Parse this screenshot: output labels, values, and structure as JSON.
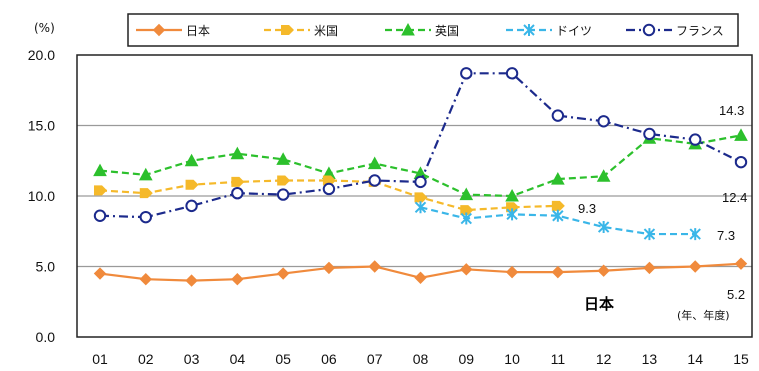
{
  "chart_data": {
    "type": "line",
    "ylabel": "(%)",
    "xunit": "(年、年度)",
    "ylim": [
      0,
      20
    ],
    "yticks": [
      "0.0",
      "5.0",
      "10.0",
      "15.0",
      "20.0"
    ],
    "grid": "horizontal",
    "legend": "top",
    "categories": [
      "01",
      "02",
      "03",
      "04",
      "05",
      "06",
      "07",
      "08",
      "09",
      "10",
      "11",
      "12",
      "13",
      "14",
      "15"
    ],
    "series": [
      {
        "name": "日本",
        "color": "#f08a3c",
        "marker": "diamond",
        "dash": "solid",
        "values": [
          4.5,
          4.1,
          4.0,
          4.1,
          4.5,
          4.9,
          5.0,
          4.2,
          4.8,
          4.6,
          4.6,
          4.7,
          4.9,
          5.0,
          5.2
        ]
      },
      {
        "name": "米国",
        "color": "#f5b92a",
        "marker": "arrow",
        "dash": "dashed",
        "values": [
          10.4,
          10.2,
          10.8,
          11.0,
          11.1,
          11.1,
          11.0,
          9.9,
          9.0,
          9.2,
          9.3,
          null,
          null,
          null,
          null
        ]
      },
      {
        "name": "英国",
        "color": "#2cc02c",
        "marker": "triangle",
        "dash": "dashed",
        "values": [
          11.8,
          11.5,
          12.5,
          13.0,
          12.6,
          11.6,
          12.3,
          11.6,
          10.1,
          10.0,
          11.2,
          11.4,
          14.1,
          13.7,
          14.3
        ]
      },
      {
        "name": "ドイツ",
        "color": "#3ab6e8",
        "marker": "star",
        "dash": "dashed",
        "values": [
          null,
          null,
          null,
          null,
          null,
          null,
          null,
          9.2,
          8.4,
          8.7,
          8.6,
          7.8,
          7.3,
          7.3,
          null
        ]
      },
      {
        "name": "フランス",
        "color": "#1c2a8c",
        "marker": "circle",
        "dash": "dashdot",
        "values": [
          8.6,
          8.5,
          9.3,
          10.2,
          10.1,
          10.5,
          11.1,
          11.0,
          18.7,
          18.7,
          15.7,
          15.3,
          14.4,
          14.0,
          12.4
        ]
      }
    ],
    "annotations": [
      {
        "text": "14.3"
      },
      {
        "text": "12.4"
      },
      {
        "text": "9.3"
      },
      {
        "text": "7.3"
      },
      {
        "text": "5.2"
      },
      {
        "text": "日本"
      }
    ]
  }
}
